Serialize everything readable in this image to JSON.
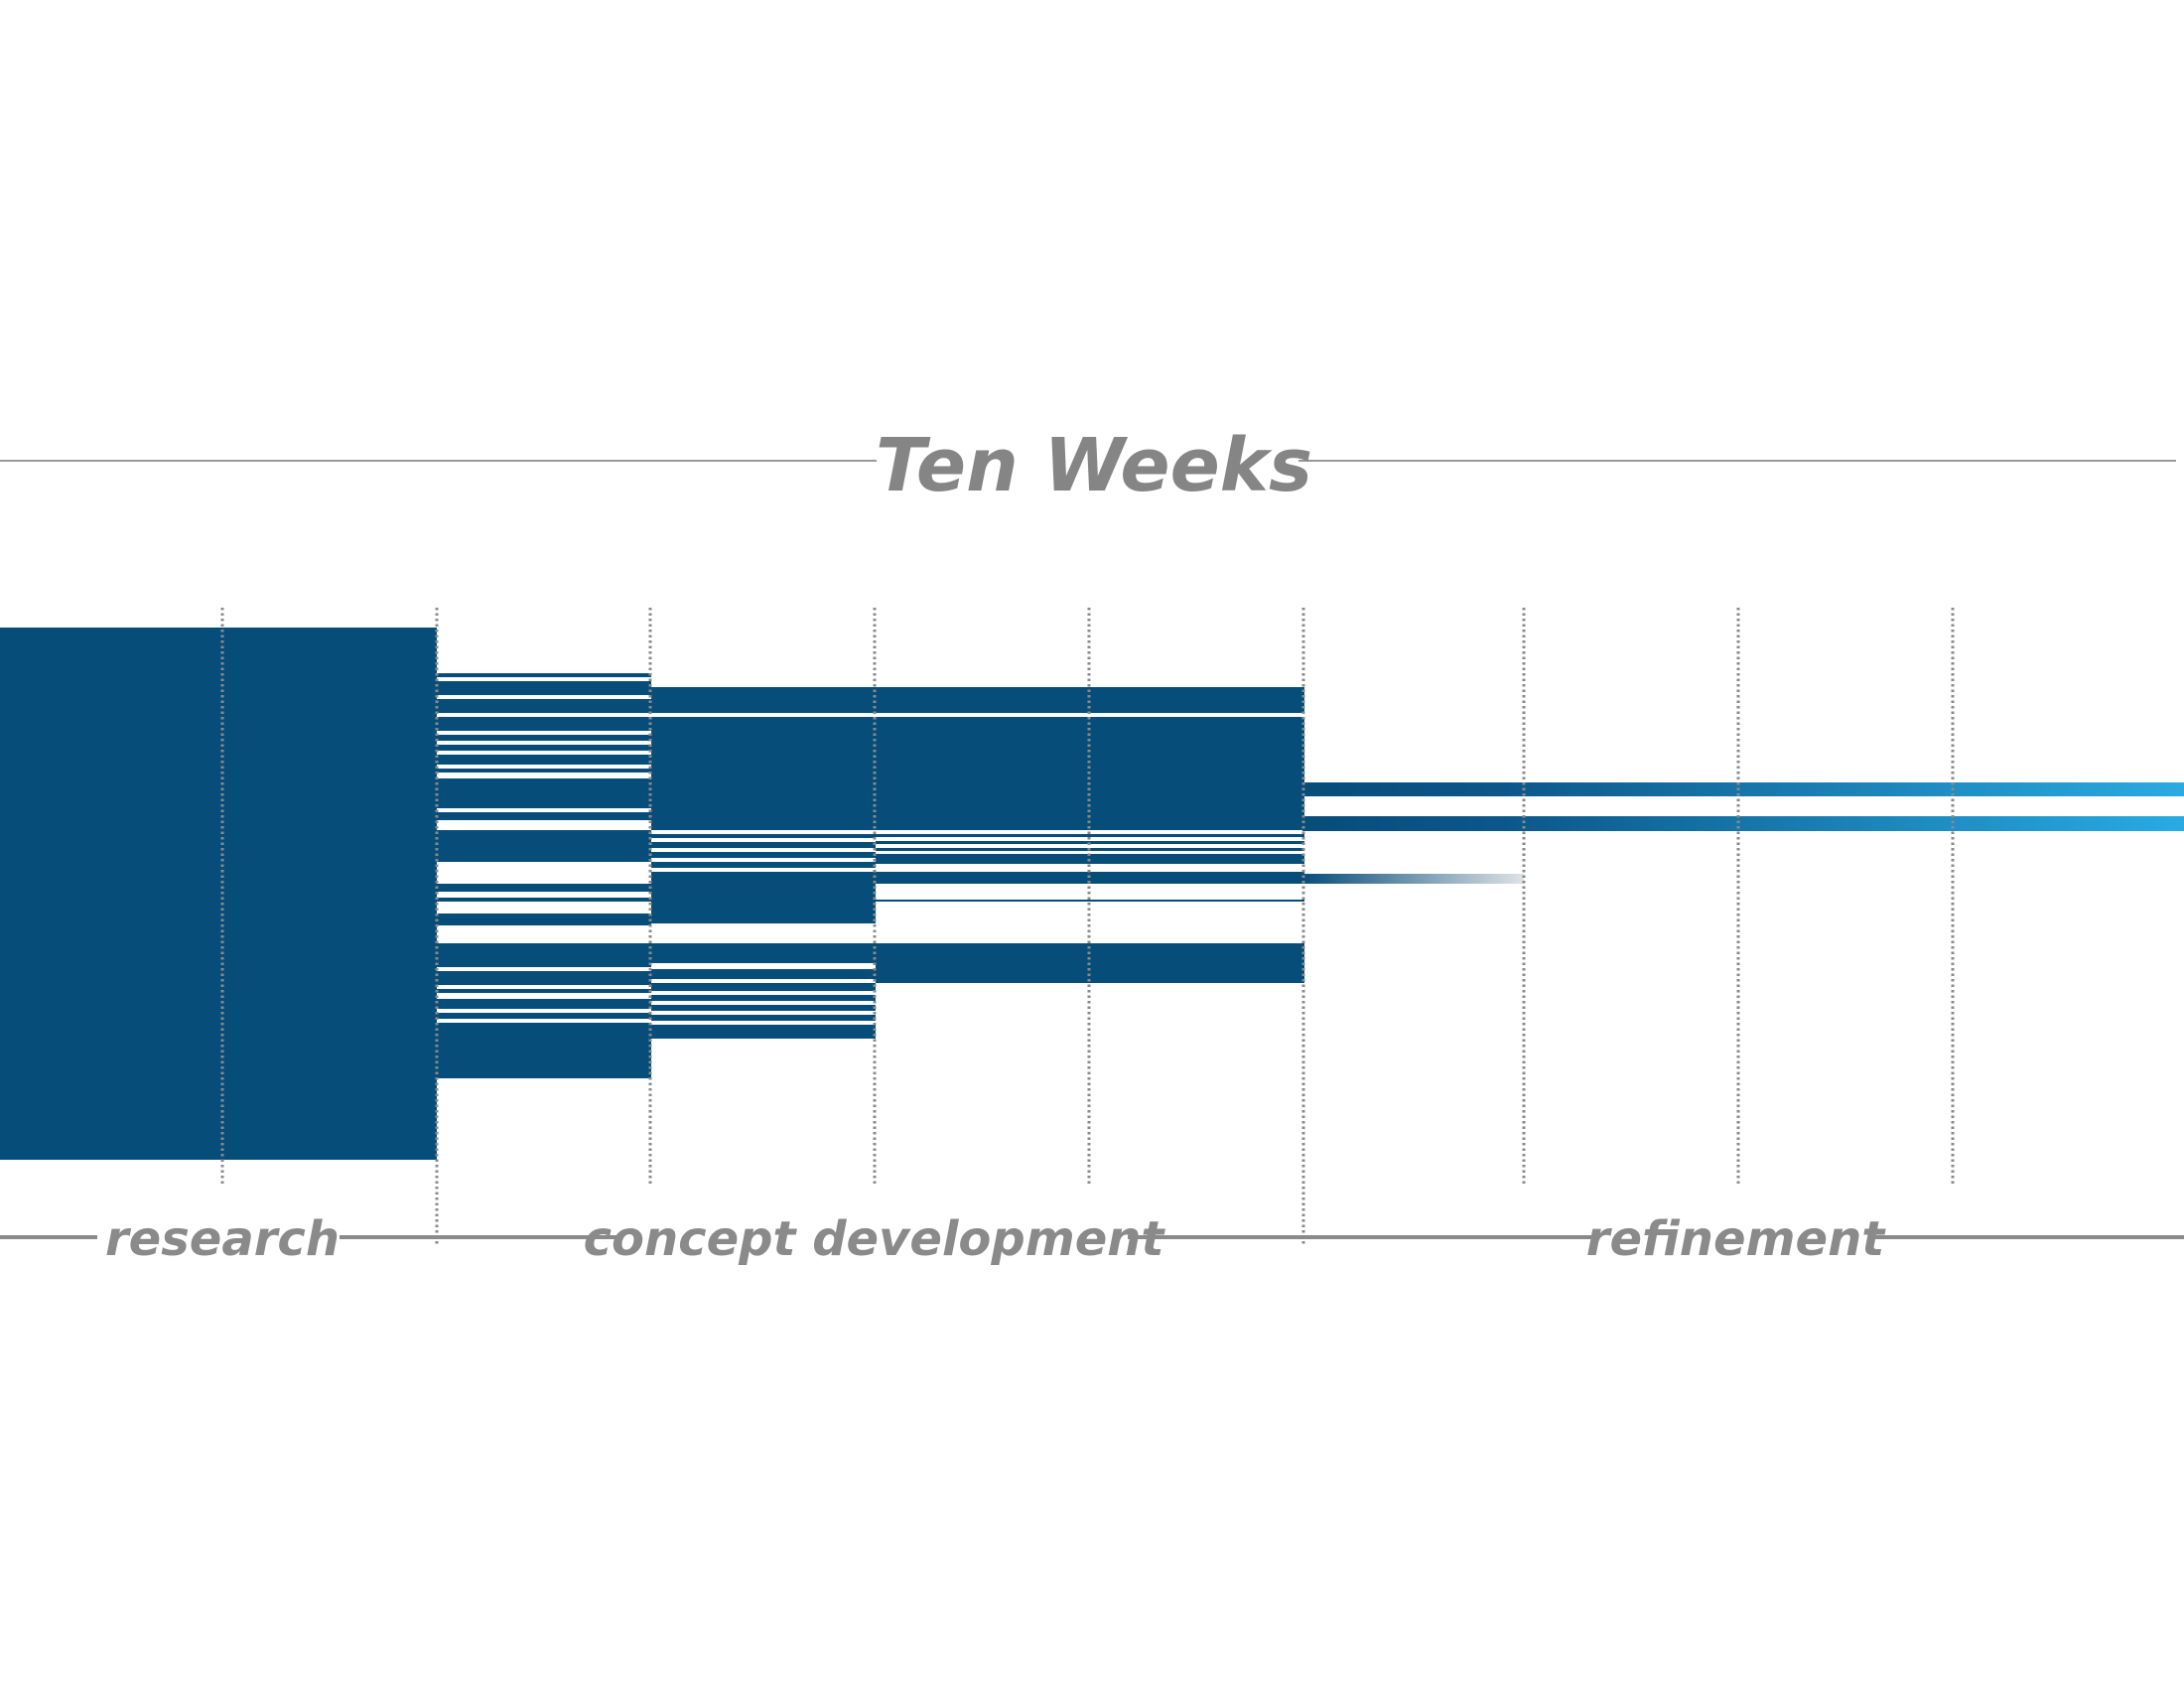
{
  "title": "Ten Weeks",
  "phases": [
    {
      "label": "research"
    },
    {
      "label": "concept development"
    },
    {
      "label": "refinement"
    }
  ],
  "colors": {
    "bar": "#074d7a",
    "bar_light_end": "#29abe2",
    "fade_end": "#dfe3e6",
    "grid": "#8a8a8a",
    "rule": "#9a9a9a",
    "text": "#858585"
  }
}
